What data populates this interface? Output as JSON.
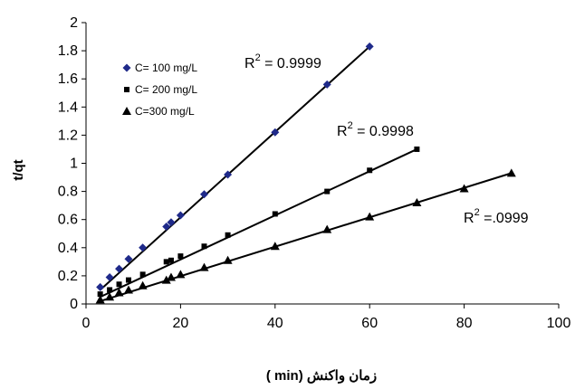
{
  "chart_data": {
    "type": "scatter",
    "title": "",
    "xlabel": "زمان واکنش (min )",
    "ylabel": "t/qt",
    "xlim": [
      0,
      100
    ],
    "ylim": [
      0,
      2
    ],
    "x_ticks": [
      "0",
      "20",
      "40",
      "60",
      "80",
      "100"
    ],
    "y_ticks": [
      "0",
      "0.2",
      "0.4",
      "0.6",
      "0.8",
      "1",
      "1.2",
      "1.4",
      "1.6",
      "1.8",
      "2"
    ],
    "grid": false,
    "legend_position": "upper-left inside",
    "series": [
      {
        "name": "C= 100 mg/L",
        "marker": "diamond",
        "color": "#1f2a8a",
        "x": [
          3,
          5,
          7,
          9,
          12,
          17,
          18,
          20,
          25,
          30,
          40,
          51,
          60
        ],
        "y": [
          0.12,
          0.19,
          0.25,
          0.32,
          0.4,
          0.55,
          0.58,
          0.63,
          0.78,
          0.92,
          1.22,
          1.56,
          1.83
        ],
        "fit": {
          "x0": 3,
          "y0": 0.1,
          "x1": 60,
          "y1": 1.83
        },
        "r2_label": "= 0.9999"
      },
      {
        "name": "C= 200 mg/L",
        "marker": "square",
        "color": "#000000",
        "x": [
          3,
          5,
          7,
          9,
          12,
          17,
          18,
          20,
          25,
          30,
          40,
          51,
          60,
          70
        ],
        "y": [
          0.07,
          0.1,
          0.14,
          0.17,
          0.21,
          0.3,
          0.31,
          0.34,
          0.41,
          0.49,
          0.64,
          0.8,
          0.95,
          1.1
        ],
        "fit": {
          "x0": 3,
          "y0": 0.05,
          "x1": 70,
          "y1": 1.1
        },
        "r2_label": "= 0.9998"
      },
      {
        "name": "C=300 mg/L",
        "marker": "triangle",
        "color": "#000000",
        "x": [
          3,
          5,
          7,
          9,
          12,
          17,
          18,
          20,
          25,
          30,
          40,
          51,
          60,
          70,
          80,
          90
        ],
        "y": [
          0.03,
          0.05,
          0.08,
          0.1,
          0.13,
          0.17,
          0.19,
          0.21,
          0.26,
          0.31,
          0.41,
          0.53,
          0.62,
          0.72,
          0.82,
          0.93
        ],
        "fit": {
          "x0": 3,
          "y0": 0.02,
          "x1": 90,
          "y1": 0.93
        },
        "r2_label": "=.0999"
      }
    ],
    "annotations": [
      {
        "prefix": "R",
        "sup": "2",
        "text": " = 0.9999",
        "series": 0
      },
      {
        "prefix": "R",
        "sup": "2",
        "text": " = 0.9998",
        "series": 1
      },
      {
        "prefix": "R",
        "sup": "2",
        "text": " =.0999",
        "series": 2
      }
    ]
  }
}
